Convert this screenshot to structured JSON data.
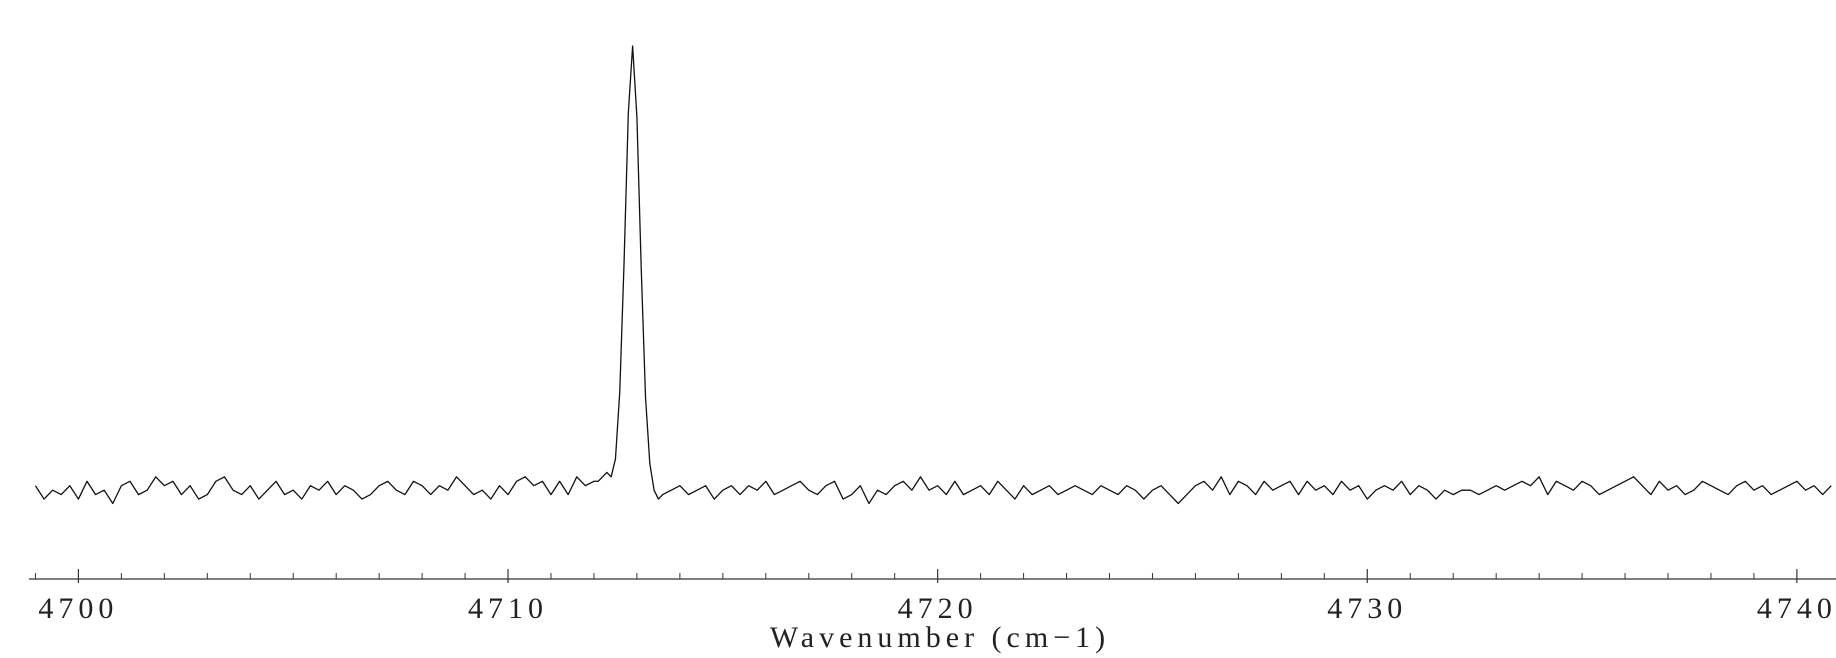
{
  "chart_data": {
    "type": "line",
    "x_label": "Wavenumber (cm−1)",
    "xlim": [
      4698.85,
      4740.91
    ],
    "xticks": [
      4700,
      4710,
      4720,
      4730,
      4740
    ],
    "xminorticks": [
      4699,
      4701,
      4702,
      4703,
      4704,
      4705,
      4706,
      4707,
      4708,
      4709,
      4711,
      4712,
      4713,
      4714,
      4715,
      4716,
      4717,
      4718,
      4719,
      4721,
      4722,
      4723,
      4724,
      4725,
      4726,
      4727,
      4728,
      4729,
      4731,
      4732,
      4733,
      4734,
      4735,
      4736,
      4737,
      4738,
      4739
    ],
    "ylim": [
      -0.2,
      1.0
    ],
    "color": "#111111",
    "x": [
      4699.0,
      4699.2,
      4699.4,
      4699.6,
      4699.8,
      4700.0,
      4700.2,
      4700.4,
      4700.6,
      4700.8,
      4701.0,
      4701.2,
      4701.4,
      4701.6,
      4701.8,
      4702.0,
      4702.2,
      4702.4,
      4702.6,
      4702.8,
      4703.0,
      4703.2,
      4703.4,
      4703.6,
      4703.8,
      4704.0,
      4704.2,
      4704.4,
      4704.6,
      4704.8,
      4705.0,
      4705.2,
      4705.4,
      4705.6,
      4705.8,
      4706.0,
      4706.2,
      4706.4,
      4706.6,
      4706.8,
      4707.0,
      4707.2,
      4707.4,
      4707.6,
      4707.8,
      4708.0,
      4708.2,
      4708.4,
      4708.6,
      4708.8,
      4709.0,
      4709.2,
      4709.4,
      4709.6,
      4709.8,
      4710.0,
      4710.2,
      4710.4,
      4710.6,
      4710.8,
      4711.0,
      4711.2,
      4711.4,
      4711.6,
      4711.8,
      4712.0,
      4712.1,
      4712.2,
      4712.3,
      4712.4,
      4712.5,
      4712.6,
      4712.7,
      4712.8,
      4712.9,
      4713.0,
      4713.1,
      4713.2,
      4713.3,
      4713.4,
      4713.5,
      4713.6,
      4713.8,
      4714.0,
      4714.2,
      4714.4,
      4714.6,
      4714.8,
      4715.0,
      4715.2,
      4715.4,
      4715.6,
      4715.8,
      4716.0,
      4716.2,
      4716.4,
      4716.6,
      4716.8,
      4717.0,
      4717.2,
      4717.4,
      4717.6,
      4717.8,
      4718.0,
      4718.2,
      4718.4,
      4718.6,
      4718.8,
      4719.0,
      4719.2,
      4719.4,
      4719.6,
      4719.8,
      4720.0,
      4720.2,
      4720.4,
      4720.6,
      4720.8,
      4721.0,
      4721.2,
      4721.4,
      4721.6,
      4721.8,
      4722.0,
      4722.2,
      4722.4,
      4722.6,
      4722.8,
      4723.0,
      4723.2,
      4723.4,
      4723.6,
      4723.8,
      4724.0,
      4724.2,
      4724.4,
      4724.6,
      4724.8,
      4725.0,
      4725.2,
      4725.4,
      4725.6,
      4725.8,
      4726.0,
      4726.2,
      4726.4,
      4726.6,
      4726.8,
      4727.0,
      4727.2,
      4727.4,
      4727.6,
      4727.8,
      4728.0,
      4728.2,
      4728.4,
      4728.6,
      4728.8,
      4729.0,
      4729.2,
      4729.4,
      4729.6,
      4729.8,
      4730.0,
      4730.2,
      4730.4,
      4730.6,
      4730.8,
      4731.0,
      4731.2,
      4731.4,
      4731.6,
      4731.8,
      4732.0,
      4732.2,
      4732.4,
      4732.6,
      4732.8,
      4733.0,
      4733.2,
      4733.4,
      4733.6,
      4733.8,
      4734.0,
      4734.2,
      4734.4,
      4734.6,
      4734.8,
      4735.0,
      4735.2,
      4735.4,
      4735.6,
      4735.8,
      4736.0,
      4736.2,
      4736.4,
      4736.6,
      4736.8,
      4737.0,
      4737.2,
      4737.4,
      4737.6,
      4737.8,
      4738.0,
      4738.2,
      4738.4,
      4738.6,
      4738.8,
      4739.0,
      4739.2,
      4739.4,
      4739.6,
      4739.8,
      4740.0,
      4740.2,
      4740.4,
      4740.6,
      4740.8
    ],
    "values": [
      0.01,
      -0.02,
      0.0,
      -0.01,
      0.01,
      -0.02,
      0.02,
      -0.01,
      0.0,
      -0.03,
      0.01,
      0.02,
      -0.01,
      0.0,
      0.03,
      0.01,
      0.02,
      -0.01,
      0.01,
      -0.02,
      -0.01,
      0.02,
      0.03,
      0.0,
      -0.01,
      0.01,
      -0.02,
      0.0,
      0.02,
      -0.01,
      0.0,
      -0.02,
      0.01,
      0.0,
      0.02,
      -0.01,
      0.01,
      0.0,
      -0.02,
      -0.01,
      0.01,
      0.02,
      0.0,
      -0.01,
      0.02,
      0.01,
      -0.01,
      0.01,
      0.0,
      0.03,
      0.01,
      -0.01,
      0.0,
      -0.02,
      0.01,
      -0.01,
      0.02,
      0.03,
      0.01,
      0.02,
      -0.01,
      0.02,
      -0.01,
      0.03,
      0.01,
      0.02,
      0.02,
      0.03,
      0.04,
      0.03,
      0.07,
      0.22,
      0.51,
      0.85,
      1.0,
      0.84,
      0.5,
      0.21,
      0.06,
      0.0,
      -0.02,
      -0.01,
      0.0,
      0.01,
      -0.01,
      0.0,
      0.01,
      -0.02,
      0.0,
      0.01,
      -0.01,
      0.01,
      0.0,
      0.02,
      -0.01,
      0.0,
      0.01,
      0.02,
      0.0,
      -0.01,
      0.01,
      0.02,
      -0.02,
      -0.01,
      0.01,
      -0.03,
      0.0,
      -0.01,
      0.01,
      0.02,
      0.0,
      0.03,
      0.0,
      0.01,
      -0.01,
      0.02,
      -0.01,
      0.0,
      0.01,
      -0.01,
      0.02,
      0.0,
      -0.02,
      0.01,
      -0.01,
      0.0,
      0.01,
      -0.01,
      0.0,
      0.01,
      0.0,
      -0.01,
      0.01,
      0.0,
      -0.01,
      0.01,
      0.0,
      -0.02,
      0.0,
      0.01,
      -0.01,
      -0.03,
      -0.01,
      0.01,
      0.02,
      0.0,
      0.03,
      -0.01,
      0.02,
      0.01,
      -0.01,
      0.02,
      0.0,
      0.01,
      0.02,
      -0.01,
      0.02,
      0.0,
      0.01,
      -0.01,
      0.02,
      0.0,
      0.01,
      -0.02,
      0.0,
      0.01,
      0.0,
      0.02,
      -0.01,
      0.01,
      0.0,
      -0.02,
      0.0,
      -0.01,
      0.0,
      0.0,
      -0.01,
      0.0,
      0.01,
      0.0,
      0.01,
      0.02,
      0.01,
      0.03,
      -0.01,
      0.02,
      0.01,
      0.0,
      0.02,
      0.01,
      -0.01,
      0.0,
      0.01,
      0.02,
      0.03,
      0.01,
      -0.01,
      0.02,
      0.0,
      0.01,
      -0.01,
      0.0,
      0.02,
      0.01,
      0.0,
      -0.01,
      0.01,
      0.02,
      0.0,
      0.01,
      -0.01,
      0.0,
      0.01,
      0.02,
      0.0,
      0.01,
      -0.01,
      0.01
    ]
  }
}
